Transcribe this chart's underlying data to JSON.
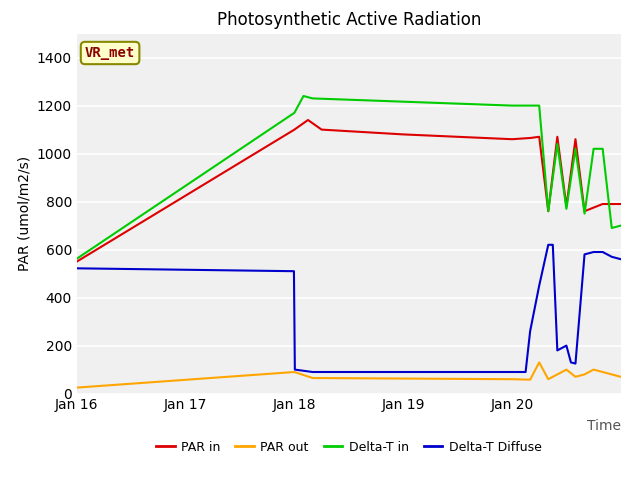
{
  "title": "Photosynthetic Active Radiation",
  "ylabel": "PAR (umol/m2/s)",
  "xlabel": "Time",
  "bg_color": "#f0f0f0",
  "ylim": [
    0,
    1500
  ],
  "yticks": [
    0,
    200,
    400,
    600,
    800,
    1000,
    1200,
    1400
  ],
  "annotation_text": "VR_met",
  "annotation_color": "#8b0000",
  "annotation_bg": "#ffffcc",
  "legend_entries": [
    "PAR in",
    "PAR out",
    "Delta-T in",
    "Delta-T Diffuse"
  ],
  "legend_colors": [
    "#dd0000",
    "#ffa500",
    "#00cc00",
    "#0000cc"
  ],
  "line_colors": {
    "PAR_in": "#dd0000",
    "PAR_out": "#ffa500",
    "Delta_T_in": "#00cc00",
    "Delta_T_Diffuse": "#0000cc"
  },
  "x_tick_labels": [
    "Jan 16",
    "Jan 17",
    "Jan 18",
    "Jan 19",
    "Jan 20"
  ],
  "x_tick_positions": [
    0,
    24,
    48,
    72,
    96
  ],
  "total_hours": 120,
  "PAR_in_data": {
    "x": [
      0,
      48,
      51,
      54,
      72,
      96,
      100,
      102,
      104,
      106,
      108,
      110,
      112,
      116,
      120
    ],
    "y": [
      550,
      1100,
      1140,
      1100,
      1080,
      1060,
      1065,
      1070,
      760,
      1070,
      780,
      1060,
      760,
      790,
      790
    ]
  },
  "PAR_out_data": {
    "x": [
      0,
      48,
      52,
      96,
      100,
      102,
      104,
      106,
      108,
      110,
      112,
      114,
      116,
      118,
      120
    ],
    "y": [
      25,
      90,
      65,
      60,
      58,
      130,
      60,
      80,
      100,
      70,
      80,
      100,
      90,
      80,
      70
    ]
  },
  "Delta_T_in_data": {
    "x": [
      0,
      48,
      50,
      52,
      96,
      100,
      102,
      104,
      106,
      108,
      110,
      112,
      114,
      116,
      118,
      120
    ],
    "y": [
      562,
      1170,
      1240,
      1230,
      1200,
      1200,
      1200,
      760,
      1040,
      770,
      1020,
      750,
      1020,
      1020,
      690,
      700
    ]
  },
  "Delta_T_Diffuse_data": {
    "x": [
      0,
      47.9,
      48.1,
      52,
      96,
      99,
      100,
      102,
      104,
      105,
      106,
      108,
      109,
      110,
      112,
      114,
      116,
      118,
      120
    ],
    "y": [
      522,
      510,
      100,
      90,
      90,
      90,
      260,
      450,
      620,
      620,
      180,
      200,
      130,
      125,
      580,
      590,
      590,
      570,
      560
    ]
  }
}
